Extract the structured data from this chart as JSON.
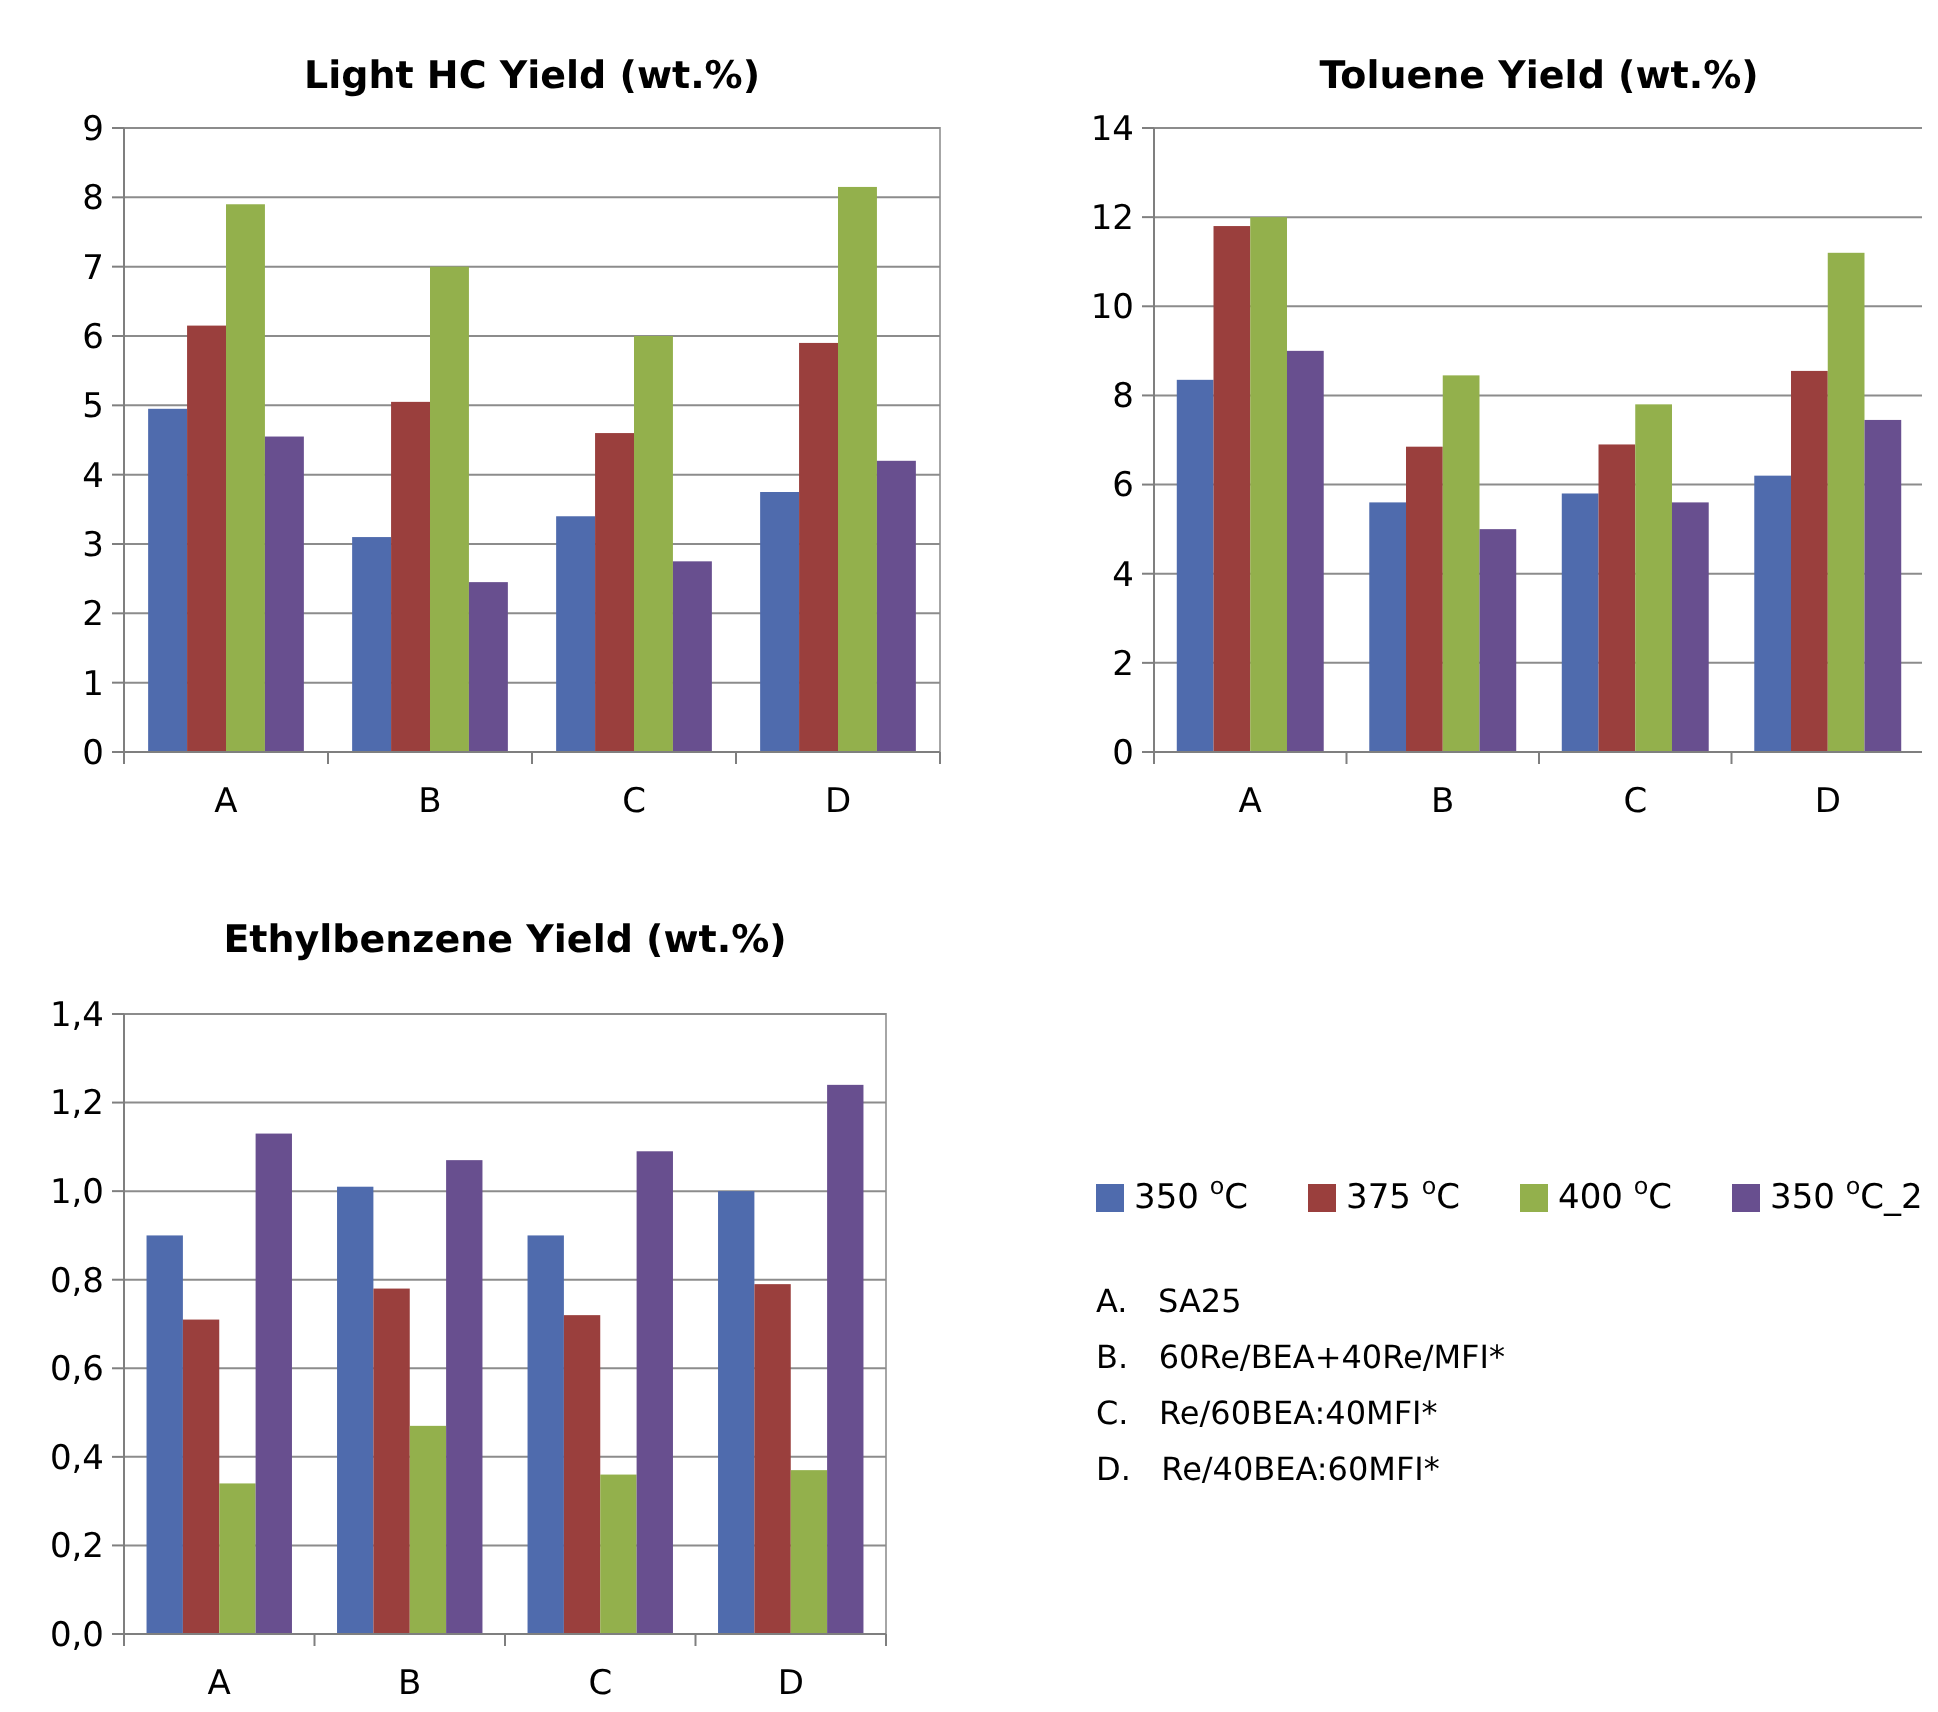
{
  "chart_data": [
    {
      "type": "bar",
      "title": "Light HC Yield (wt.%)",
      "categories": [
        "A",
        "B",
        "C",
        "D"
      ],
      "ylim": [
        0,
        9
      ],
      "yticks": [
        0,
        1,
        2,
        3,
        4,
        5,
        6,
        7,
        8,
        9
      ],
      "grid": "y",
      "legend": false,
      "series": [
        {
          "color": "#4f6bad",
          "values": [
            4.95,
            3.1,
            3.4,
            3.75
          ]
        },
        {
          "color": "#9a3f3d",
          "values": [
            6.15,
            5.05,
            4.6,
            5.9
          ]
        },
        {
          "color": "#93b04c",
          "values": [
            7.9,
            7.0,
            6.0,
            8.15
          ]
        },
        {
          "color": "#684f8f",
          "values": [
            4.55,
            2.45,
            2.75,
            4.2
          ]
        }
      ]
    },
    {
      "type": "bar",
      "title": "Toluene Yield (wt.%)",
      "categories": [
        "A",
        "B",
        "C",
        "D"
      ],
      "ylim": [
        0,
        14
      ],
      "yticks": [
        0,
        2,
        4,
        6,
        8,
        10,
        12,
        14
      ],
      "grid": "y",
      "legend": false,
      "series": [
        {
          "color": "#4f6bad",
          "values": [
            8.35,
            5.6,
            5.8,
            6.2
          ]
        },
        {
          "color": "#9a3f3d",
          "values": [
            11.8,
            6.85,
            6.9,
            8.55
          ]
        },
        {
          "color": "#93b04c",
          "values": [
            12.0,
            8.45,
            7.8,
            11.2
          ]
        },
        {
          "color": "#684f8f",
          "values": [
            9.0,
            5.0,
            5.6,
            7.45
          ]
        }
      ]
    },
    {
      "type": "bar",
      "title": "Ethylbenzene Yield (wt.%)",
      "categories": [
        "A",
        "B",
        "C",
        "D"
      ],
      "ylim": [
        0,
        1.4
      ],
      "yticks": [
        {
          "value": 0,
          "label": "0,0"
        },
        {
          "value": 0.2,
          "label": "0,2"
        },
        {
          "value": 0.4,
          "label": "0,4"
        },
        {
          "value": 0.6,
          "label": "0,6"
        },
        {
          "value": 0.8,
          "label": "0,8"
        },
        {
          "value": 1.0,
          "label": "1,0"
        },
        {
          "value": 1.2,
          "label": "1,2"
        },
        {
          "value": 1.4,
          "label": "1,4"
        }
      ],
      "grid": "y",
      "legend": "right",
      "annotations": [
        "A.   SA25",
        "B.   60Re/BEA+40Re/MFI*",
        "C.   Re/60BEA:40MFI*",
        "D.   Re/40BEA:60MFI*"
      ],
      "series": [
        {
          "name": "350 $^{o}$C",
          "color": "#4f6bad",
          "values": [
            0.9,
            1.01,
            0.9,
            1.0
          ]
        },
        {
          "name": "375 $^{o}$C",
          "color": "#9a3f3d",
          "values": [
            0.71,
            0.78,
            0.72,
            0.79
          ]
        },
        {
          "name": "400 $^{o}$C",
          "color": "#93b04c",
          "values": [
            0.34,
            0.47,
            0.36,
            0.37
          ]
        },
        {
          "name": "350 $^{o}$C_2",
          "color": "#684f8f",
          "values": [
            1.13,
            1.07,
            1.09,
            1.24
          ]
        }
      ]
    }
  ]
}
